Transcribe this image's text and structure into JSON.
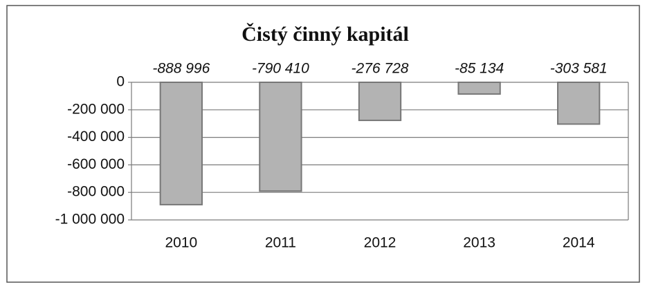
{
  "chart_data": {
    "type": "bar",
    "title": "Čistý činný kapitál",
    "categories": [
      "2010",
      "2011",
      "2012",
      "2013",
      "2014"
    ],
    "values": [
      -888996,
      -790410,
      -276728,
      -85134,
      -303581
    ],
    "value_labels": [
      "-888 996",
      "-790 410",
      "-276 728",
      "-85 134",
      "-303 581"
    ],
    "color": "#b3b3b3",
    "ylim": [
      -1000000,
      0
    ],
    "yticks": [
      0,
      {
        "value": -200000,
        "label": "-200 000"
      },
      {
        "value": -400000,
        "label": "-400 000"
      },
      {
        "value": -600000,
        "label": "-600 000"
      },
      {
        "value": -800000,
        "label": "-800 000"
      },
      {
        "value": -1000000,
        "label": "-1 000 000"
      }
    ],
    "grid": true
  }
}
